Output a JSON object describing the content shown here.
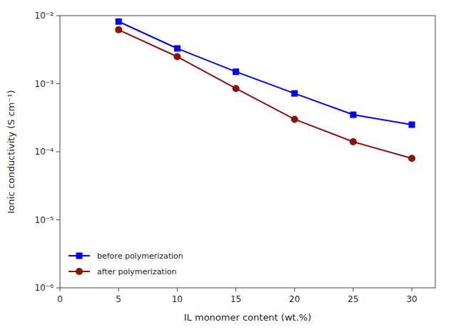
{
  "chart_data": {
    "type": "line",
    "x": [
      5,
      10,
      15,
      20,
      25,
      30
    ],
    "series": [
      {
        "name": "before polymerization",
        "color": "#0000FF",
        "marker": "square",
        "values": [
          0.0082,
          0.0033,
          0.0015,
          0.00072,
          0.00035,
          0.00025
        ]
      },
      {
        "name": "after polymerization",
        "color": "#8B1010",
        "marker": "circle",
        "values": [
          0.0062,
          0.0025,
          0.00085,
          0.0003,
          0.00014,
          8e-05
        ]
      }
    ],
    "xlabel": "IL monomer content (wt.%)",
    "ylabel": "Ionic conductivity (S cm⁻¹)",
    "xlim": [
      0,
      32
    ],
    "ylim": [
      1e-06,
      0.01
    ],
    "xticks": [
      0,
      5,
      10,
      15,
      20,
      25,
      30
    ],
    "yticks": [
      {
        "value": 1e-06,
        "label": "10⁻⁶"
      },
      {
        "value": 1e-05,
        "label": "10⁻⁵"
      },
      {
        "value": 0.0001,
        "label": "10⁻⁴"
      },
      {
        "value": 0.001,
        "label": "10⁻³"
      },
      {
        "value": 0.01,
        "label": "10⁻²"
      }
    ],
    "log": "y",
    "grid": false,
    "legend": "lower-left"
  }
}
